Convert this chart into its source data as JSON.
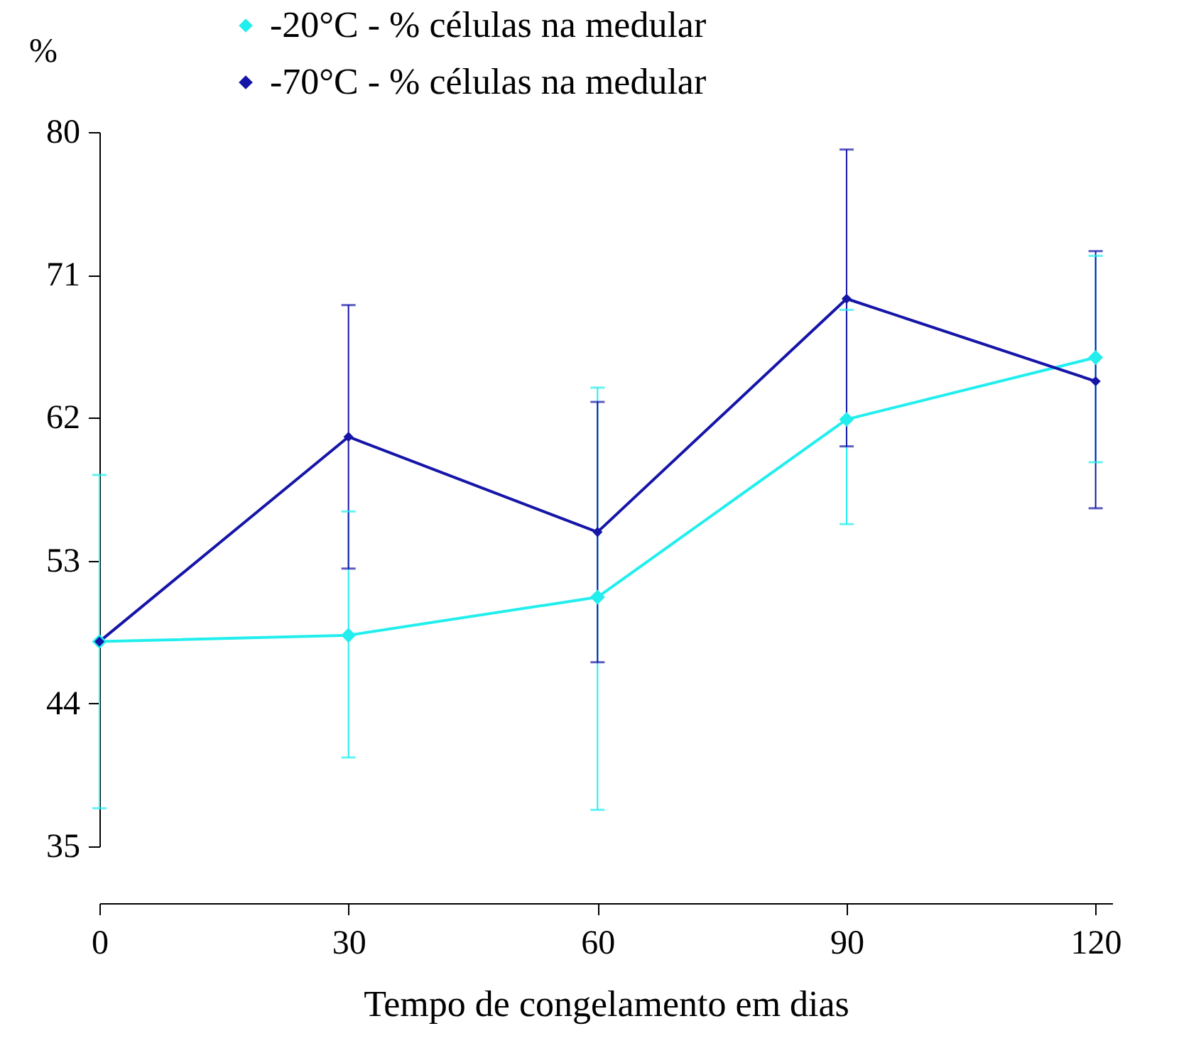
{
  "chart_data": {
    "type": "line",
    "xlabel": "Tempo de congelamento em dias",
    "ylabel": "%",
    "x": [
      0,
      30,
      60,
      90,
      120
    ],
    "xlim": [
      0,
      122
    ],
    "xticks": [
      0,
      30,
      60,
      90,
      120
    ],
    "ylim": [
      35,
      80
    ],
    "yticks": [
      35,
      44,
      53,
      62,
      71,
      80
    ],
    "grid": false,
    "legend": "top left",
    "marker": "diamond",
    "line_style": "solid",
    "series": [
      {
        "name": "-20°C - % células na medular",
        "color": "#22eeee",
        "values": [
          47.9,
          48.3,
          50.7,
          61.9,
          65.8
        ],
        "errors": [
          [
            37.4,
            58.4
          ],
          [
            40.6,
            56.1
          ],
          [
            37.3,
            63.9
          ],
          [
            55.3,
            68.8
          ],
          [
            59.2,
            72.2
          ]
        ]
      },
      {
        "name": "-70°C - % células na medular",
        "color": "#1515a8",
        "values": [
          47.9,
          60.8,
          54.8,
          69.5,
          64.3
        ],
        "errors": [
          null,
          [
            52.5,
            69.1
          ],
          [
            46.6,
            63.0
          ],
          [
            60.2,
            78.9
          ],
          [
            56.3,
            72.5
          ]
        ]
      }
    ]
  }
}
